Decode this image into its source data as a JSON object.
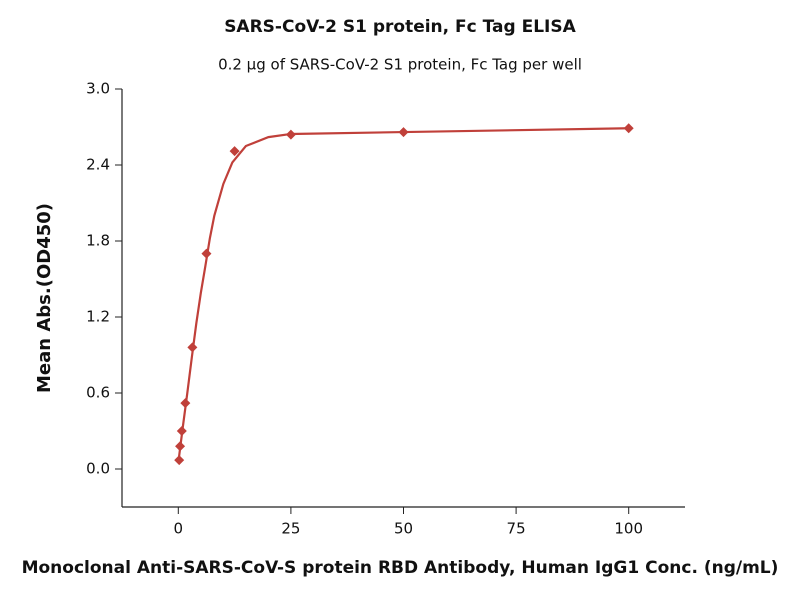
{
  "chart_data": {
    "type": "scatter",
    "title": "SARS-CoV-2 S1 protein, Fc Tag ELISA",
    "subtitle": "0.2 µg of SARS-CoV-2 S1 protein, Fc Tag per well",
    "x_label": "Monoclonal Anti-SARS-CoV-S protein RBD Antibody, Human IgG1 Conc. (ng/mL)",
    "y_label": "Mean Abs.(OD450)",
    "color": "#c0403a",
    "points": {
      "x": [
        0.195,
        0.39,
        0.78,
        1.5625,
        3.125,
        6.25,
        12.5,
        25,
        50,
        100
      ],
      "values": [
        0.07,
        0.18,
        0.3,
        0.52,
        0.96,
        1.7,
        2.51,
        2.64,
        2.66,
        2.69
      ]
    },
    "curve": {
      "x": [
        0,
        1,
        2,
        3,
        4,
        5,
        6,
        7,
        8,
        10,
        12,
        15,
        20,
        25,
        50,
        100
      ],
      "values": [
        0.05,
        0.33,
        0.6,
        0.88,
        1.15,
        1.39,
        1.6,
        1.82,
        2.0,
        2.25,
        2.42,
        2.55,
        2.62,
        2.645,
        2.66,
        2.69
      ]
    },
    "xlim": [
      -12.5,
      112.5
    ],
    "xticks": [
      0,
      25,
      50,
      75,
      100
    ],
    "ylim": [
      -0.3,
      3.0
    ],
    "yticks": [
      {
        "value": 0,
        "label": "0.0"
      },
      0.6,
      1.2,
      1.8,
      2.4,
      {
        "value": 3,
        "label": "3.0"
      }
    ]
  }
}
